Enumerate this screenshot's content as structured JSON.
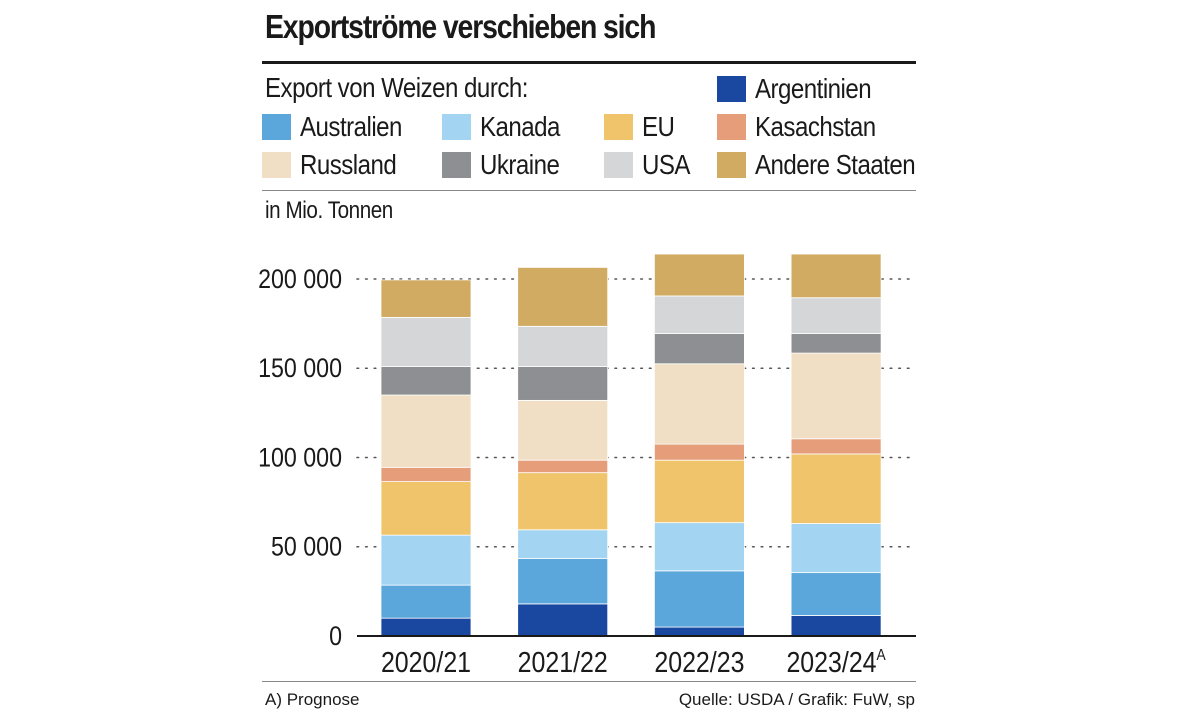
{
  "title": "Exportströme verschieben sich",
  "legend": {
    "heading": "Export von Weizen durch:",
    "unit": "in Mio. Tonnen"
  },
  "footnote": "A) Prognose",
  "source": "Quelle: USDA / Grafik: FuW, sp",
  "colors": {
    "Argentinien": "#1a47a0",
    "Australien": "#5ba7dc",
    "Kanada": "#a3d4f1",
    "EU": "#f0c46b",
    "Kasachstan": "#e69e7a",
    "Russland": "#f0dfc4",
    "Ukraine": "#8e8f92",
    "USA": "#d5d6d8",
    "Andere Staaten": "#d2ab62"
  },
  "chart_data": {
    "type": "bar",
    "stacked": true,
    "categories": [
      "2020/21",
      "2021/22",
      "2022/23",
      "2023/24"
    ],
    "category_notes": [
      "",
      "",
      "",
      "A"
    ],
    "ylim": [
      0,
      200000
    ],
    "yticks": [
      0,
      50000,
      100000,
      150000,
      200000
    ],
    "ytick_labels": [
      "0",
      "50 000",
      "100 000",
      "150 000",
      "200 000"
    ],
    "series": [
      {
        "name": "Argentinien",
        "values": [
          10000,
          18000,
          5000,
          11500
        ]
      },
      {
        "name": "Australien",
        "values": [
          18500,
          25500,
          31500,
          24000
        ]
      },
      {
        "name": "Kanada",
        "values": [
          28000,
          16000,
          27000,
          27500
        ]
      },
      {
        "name": "EU",
        "values": [
          30000,
          32000,
          35000,
          39000
        ]
      },
      {
        "name": "Kasachstan",
        "values": [
          8000,
          7000,
          9000,
          8500
        ]
      },
      {
        "name": "Russland",
        "values": [
          40500,
          33500,
          45000,
          48000
        ]
      },
      {
        "name": "Ukraine",
        "values": [
          16000,
          19000,
          17000,
          11000
        ]
      },
      {
        "name": "USA",
        "values": [
          27500,
          22500,
          21000,
          20000
        ]
      },
      {
        "name": "Andere Staaten",
        "values": [
          21000,
          33000,
          23500,
          24500
        ]
      }
    ]
  }
}
